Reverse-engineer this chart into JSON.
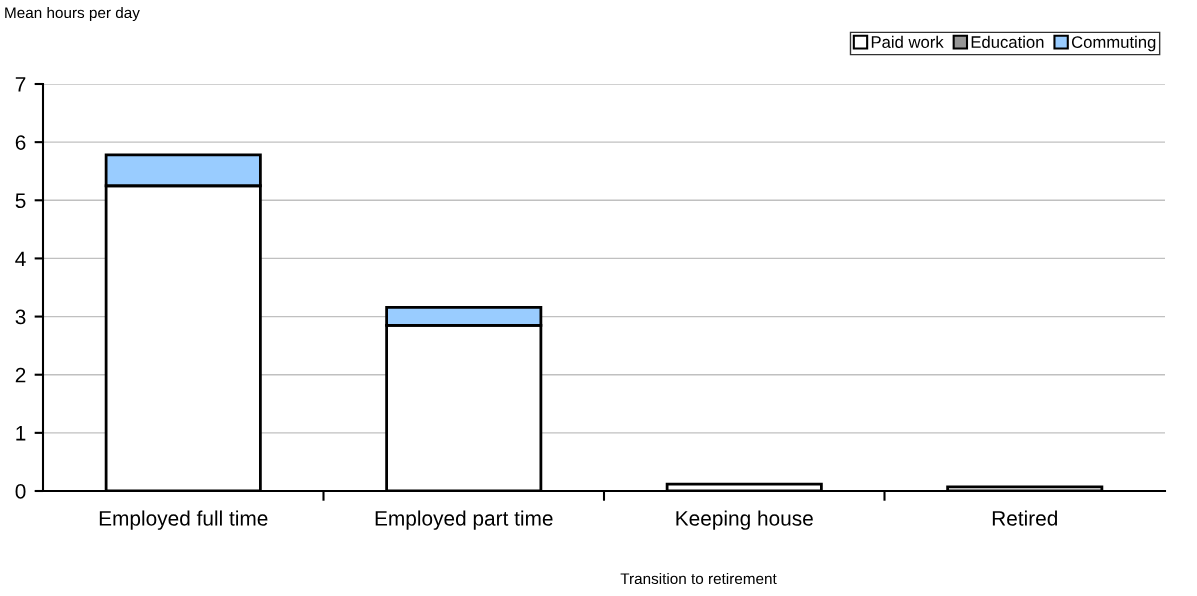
{
  "chart_data": {
    "type": "bar",
    "stacked": true,
    "ylabel": "Mean hours per day",
    "xlabel": "Transition to retirement",
    "categories": [
      "Employed full time",
      "Employed part time",
      "Keeping house",
      "Retired"
    ],
    "series": [
      {
        "name": "Paid work",
        "color": "#ffffff",
        "values": [
          5.25,
          2.85,
          0.12,
          0.07
        ]
      },
      {
        "name": "Education",
        "color": "#969696",
        "values": [
          null,
          null,
          null,
          null
        ]
      },
      {
        "name": "Commuting",
        "color": "#99ccff",
        "values": [
          0.53,
          0.31,
          null,
          null
        ]
      }
    ],
    "ylim": [
      0,
      7
    ],
    "yticks": [
      0,
      1,
      2,
      3,
      4,
      5,
      6,
      7
    ],
    "grid": "y",
    "legend": "top right"
  }
}
